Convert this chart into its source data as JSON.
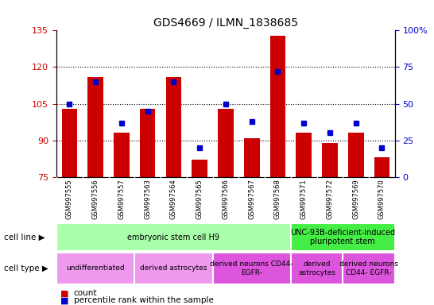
{
  "title": "GDS4669 / ILMN_1838685",
  "samples": [
    "GSM997555",
    "GSM997556",
    "GSM997557",
    "GSM997563",
    "GSM997564",
    "GSM997565",
    "GSM997566",
    "GSM997567",
    "GSM997568",
    "GSM997571",
    "GSM997572",
    "GSM997569",
    "GSM997570"
  ],
  "counts": [
    103,
    116,
    93,
    103,
    116,
    82,
    103,
    91,
    133,
    93,
    89,
    93,
    83
  ],
  "percentiles": [
    50,
    65,
    37,
    45,
    65,
    20,
    50,
    38,
    72,
    37,
    30,
    37,
    20
  ],
  "ylim_left": [
    75,
    135
  ],
  "ylim_right": [
    0,
    100
  ],
  "yticks_left": [
    75,
    90,
    105,
    120,
    135
  ],
  "yticks_right": [
    0,
    25,
    50,
    75,
    100
  ],
  "bar_color": "#cc0000",
  "marker_color": "#0000cc",
  "cell_line_groups": [
    {
      "label": "embryonic stem cell H9",
      "start": 0,
      "end": 8,
      "color": "#aaffaa"
    },
    {
      "label": "UNC-93B-deficient-induced\npluripotent stem",
      "start": 9,
      "end": 12,
      "color": "#44ee44"
    }
  ],
  "cell_type_groups": [
    {
      "label": "undifferentiated",
      "start": 0,
      "end": 2,
      "color": "#ee99ee"
    },
    {
      "label": "derived astrocytes",
      "start": 3,
      "end": 5,
      "color": "#ee99ee"
    },
    {
      "label": "derived neurons CD44-\nEGFR-",
      "start": 6,
      "end": 8,
      "color": "#dd55dd"
    },
    {
      "label": "derived\nastrocytes",
      "start": 9,
      "end": 10,
      "color": "#dd55dd"
    },
    {
      "label": "derived neurons\nCD44- EGFR-",
      "start": 11,
      "end": 12,
      "color": "#dd55dd"
    }
  ],
  "tick_label_color_left": "#cc0000",
  "tick_label_color_right": "#0000cc",
  "sample_bg_color": "#cccccc",
  "grid_dotted_at": [
    90,
    105,
    120
  ]
}
